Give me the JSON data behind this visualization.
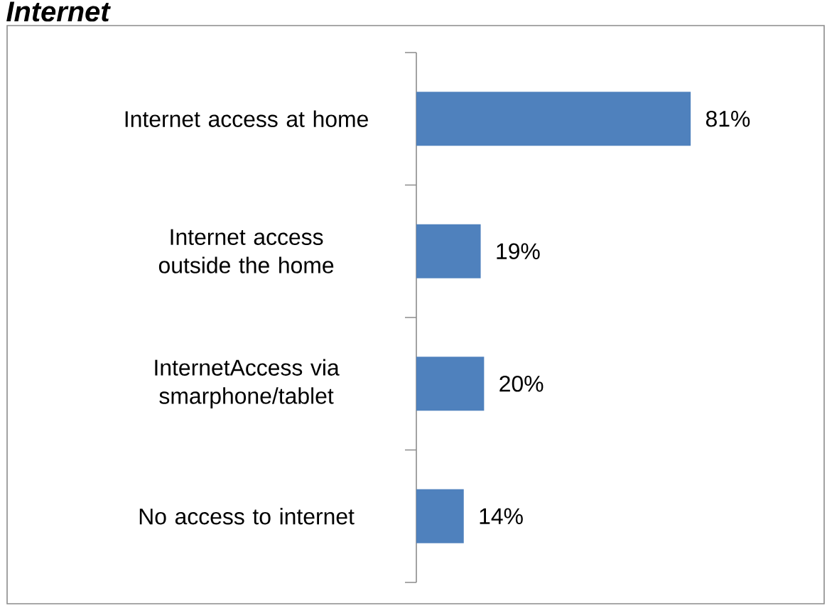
{
  "chart_data": {
    "type": "bar",
    "orientation": "horizontal",
    "title": "Internet",
    "categories": [
      "Internet access at home",
      "Internet access outside the home",
      "InternetAccess via smarphone/tablet",
      "No access to internet"
    ],
    "values": [
      81,
      19,
      20,
      14
    ],
    "color": "#4f81bd",
    "value_labels": [
      "81%",
      "19%",
      "20%",
      "14%"
    ]
  }
}
